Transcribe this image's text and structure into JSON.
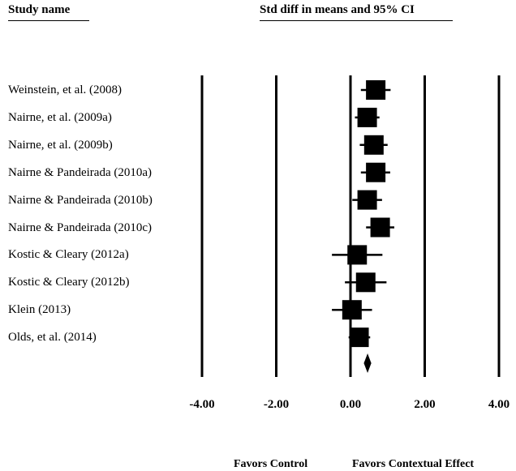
{
  "header": {
    "study_col": "Study name",
    "effect_col": "Std diff in means and 95% CI"
  },
  "footer": {
    "favors_control": "Favors Control",
    "favors_effect": "Favors Contextual Effect"
  },
  "colors": {
    "ink": "#000000",
    "background": "#ffffff"
  },
  "chart_data": {
    "type": "forest",
    "xlim": [
      -4,
      4
    ],
    "ticks": [
      -4,
      -2,
      0,
      2,
      4
    ],
    "tick_labels": [
      "-4.00",
      "-2.00",
      "0.00",
      "2.00",
      "4.00"
    ],
    "reference_lines": [
      -4,
      -2,
      0,
      2,
      4
    ],
    "studies": [
      {
        "name": "Weinstein, et al. (2008)",
        "estimate": 0.68,
        "ci": [
          0.28,
          1.08
        ]
      },
      {
        "name": "Nairne, et al. (2009a)",
        "estimate": 0.45,
        "ci": [
          0.12,
          0.78
        ]
      },
      {
        "name": "Nairne, et al. (2009b)",
        "estimate": 0.63,
        "ci": [
          0.25,
          1.0
        ]
      },
      {
        "name": "Nairne & Pandeirada (2010a)",
        "estimate": 0.68,
        "ci": [
          0.28,
          1.07
        ]
      },
      {
        "name": "Nairne & Pandeirada (2010b)",
        "estimate": 0.45,
        "ci": [
          0.05,
          0.85
        ]
      },
      {
        "name": "Nairne & Pandeirada (2010c)",
        "estimate": 0.8,
        "ci": [
          0.42,
          1.18
        ]
      },
      {
        "name": "Kostic & Cleary (2012a)",
        "estimate": 0.18,
        "ci": [
          -0.5,
          0.86
        ]
      },
      {
        "name": "Kostic & Cleary (2012b)",
        "estimate": 0.41,
        "ci": [
          -0.15,
          0.97
        ]
      },
      {
        "name": "Klein (2013)",
        "estimate": 0.04,
        "ci": [
          -0.5,
          0.58
        ]
      },
      {
        "name": "Olds, et al. (2014)",
        "estimate": 0.23,
        "ci": [
          -0.05,
          0.53
        ]
      }
    ],
    "summary": {
      "estimate": 0.46,
      "ci": [
        0.36,
        0.56
      ]
    }
  }
}
